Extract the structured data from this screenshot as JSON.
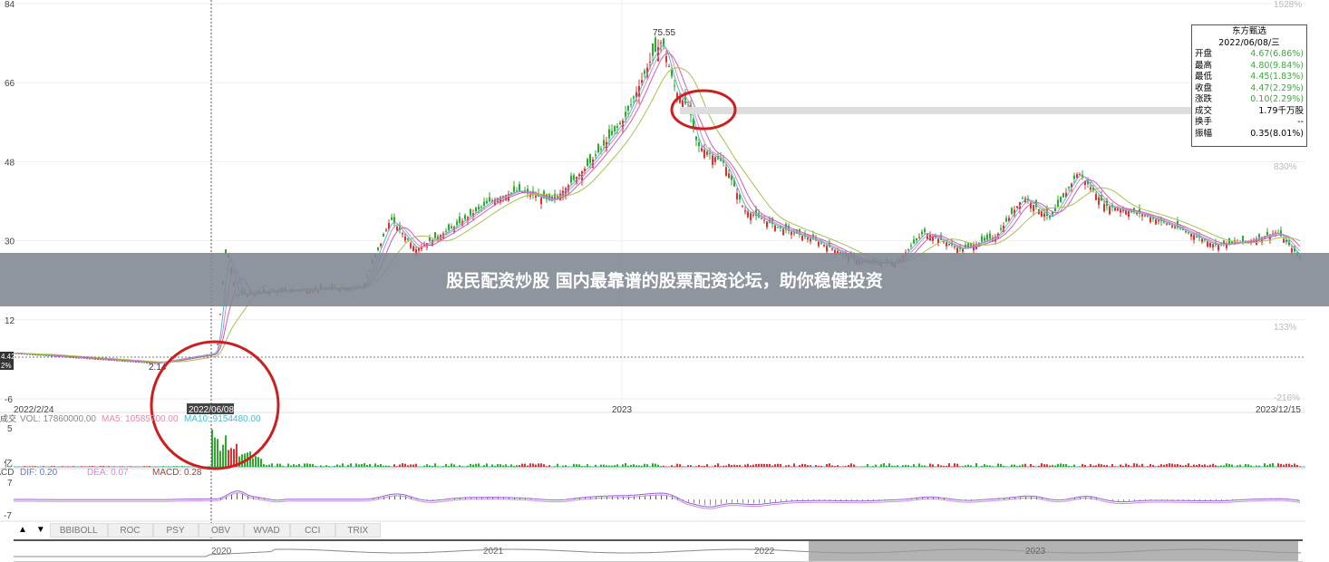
{
  "banner": {
    "text": "股民配资炒股 国内最靠谱的股票配资论坛，助你稳健投资"
  },
  "info_box": {
    "name": "东方甄选",
    "date": "2022/06/08/三",
    "rows": [
      {
        "label": "开盘",
        "value": "4.67(6.86%)",
        "color": "green"
      },
      {
        "label": "最高",
        "value": "4.80(9.84%)",
        "color": "green"
      },
      {
        "label": "最低",
        "value": "4.45(1.83%)",
        "color": "green"
      },
      {
        "label": "收盘",
        "value": "4.47(2.29%)",
        "color": "green"
      },
      {
        "label": "涨跌",
        "value": "0.10(2.29%)",
        "color": "green"
      },
      {
        "label": "成交",
        "value": "1.79千万股",
        "color": "black"
      },
      {
        "label": "换手",
        "value": "--",
        "color": "black"
      },
      {
        "label": "振幅",
        "value": "0.35(8.01%)",
        "color": "black"
      }
    ]
  },
  "volume_legend": {
    "prefix": "成交",
    "vol": "VOL: 17860000.00",
    "ma5": "MA5: 10585700.00",
    "ma10": "MA10: 9154480.00",
    "ticks": [
      "5",
      "亿"
    ]
  },
  "macd_legend": {
    "prefix": "MACD",
    "dif": "DIF: 0.20",
    "dea": "DEA: 0.07",
    "macd": "MACD: 0.28",
    "ticks": [
      "7",
      "-7"
    ]
  },
  "crosshair": {
    "date": "2022/06/08",
    "price_tag": "4.42",
    "pct_tag": "2%"
  },
  "tabs": [
    "BBIBOLL",
    "ROC",
    "PSY",
    "OBV",
    "WVAD",
    "CCI",
    "TRIX"
  ],
  "navigator": {
    "labels": [
      "2020",
      "2021",
      "2022",
      "2023"
    ]
  },
  "colors": {
    "up": "#e03030",
    "down": "#2faa2f",
    "ma5": "#e58aa8",
    "ma10": "#4bb8d8",
    "ma20": "#c060c0",
    "ma60": "#a8c050",
    "annotation": "#cc1f1f"
  },
  "chart_data": {
    "type": "candlestick",
    "y_ticks": [
      "84",
      "66",
      "48",
      "30",
      "12",
      "-6"
    ],
    "ylim": [
      -6,
      84
    ],
    "pct_ticks": [
      "1528%",
      "830%",
      "133%",
      "-216%"
    ],
    "x_labels": [
      "2022/2/24",
      "2023",
      "2023/12/15"
    ],
    "xlim": [
      "2022-02-24",
      "2023-12-15"
    ],
    "annotations": {
      "high": "75.55",
      "low": "2.14"
    },
    "close": [
      [
        "2022-02-24",
        4.42
      ],
      [
        "2022-05-08",
        2.14
      ],
      [
        "2022-06-07",
        4.37
      ],
      [
        "2022-06-08",
        4.47
      ],
      [
        "2022-06-13",
        29
      ],
      [
        "2022-06-18",
        17.7
      ],
      [
        "2022-07-06",
        18.5
      ],
      [
        "2022-07-29",
        19
      ],
      [
        "2022-08-22",
        19.5
      ],
      [
        "2022-09-05",
        35
      ],
      [
        "2022-09-18",
        28
      ],
      [
        "2022-10-07",
        33
      ],
      [
        "2022-10-26",
        39
      ],
      [
        "2022-11-09",
        41.5
      ],
      [
        "2022-11-27",
        39
      ],
      [
        "2022-12-16",
        47.6
      ],
      [
        "2023-01-03",
        58
      ],
      [
        "2023-01-17",
        72
      ],
      [
        "2023-01-22",
        75.55
      ],
      [
        "2023-01-29",
        64
      ],
      [
        "2023-02-05",
        60
      ],
      [
        "2023-02-09",
        51.8
      ],
      [
        "2023-02-23",
        47.6
      ],
      [
        "2023-03-05",
        37
      ],
      [
        "2023-03-23",
        33
      ],
      [
        "2023-04-11",
        30
      ],
      [
        "2023-05-04",
        25
      ],
      [
        "2023-05-22",
        25
      ],
      [
        "2023-06-05",
        32
      ],
      [
        "2023-06-24",
        28
      ],
      [
        "2023-07-12",
        31
      ],
      [
        "2023-07-26",
        40
      ],
      [
        "2023-08-09",
        35
      ],
      [
        "2023-08-23",
        45.6
      ],
      [
        "2023-09-06",
        38
      ],
      [
        "2023-09-25",
        36
      ],
      [
        "2023-10-13",
        33
      ],
      [
        "2023-11-01",
        29
      ],
      [
        "2023-11-19",
        30
      ],
      [
        "2023-12-03",
        32
      ],
      [
        "2023-12-15",
        26
      ]
    ]
  }
}
